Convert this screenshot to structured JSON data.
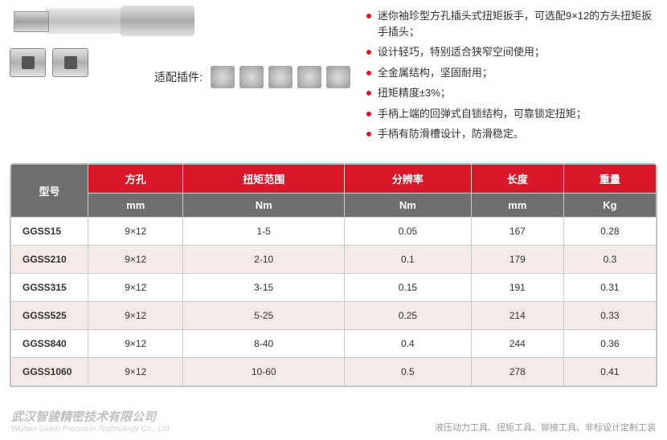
{
  "pluginLabel": "适配插件:",
  "features": [
    "迷你袖珍型方孔插头式扭矩扳手，可选配9×12的方头扭矩扳手插头；",
    "设计轻巧，特别适合狭窄空间使用；",
    "全金属结构，坚固耐用；",
    "扭矩精度±3%；",
    "手柄上端的回弹式自锁结构，可靠锁定扭矩；",
    "手柄有防滑槽设计，防滑稳定。"
  ],
  "table": {
    "modelHeader": "型号",
    "headers": [
      "方孔",
      "扭矩范围",
      "分辨率",
      "长度",
      "重量"
    ],
    "units": [
      "mm",
      "Nm",
      "Nm",
      "mm",
      "Kg"
    ],
    "rows": [
      [
        "GGSS15",
        "9×12",
        "1-5",
        "0.05",
        "167",
        "0.28"
      ],
      [
        "GGSS210",
        "9×12",
        "2-10",
        "0.1",
        "179",
        "0.3"
      ],
      [
        "GGSS315",
        "9×12",
        "3-15",
        "0.15",
        "191",
        "0.31"
      ],
      [
        "GGSS525",
        "9×12",
        "5-25",
        "0.25",
        "214",
        "0.33"
      ],
      [
        "GGSS840",
        "9×12",
        "8-40",
        "0.4",
        "244",
        "0.36"
      ],
      [
        "GGSS1060",
        "9×12",
        "10-60",
        "0.5",
        "278",
        "0.41"
      ]
    ]
  },
  "footer": {
    "companyCn": "武汉智骏精密技术有限公司",
    "companyEn": "Wuhan Gidrin Precision Technology Co., Ltd",
    "right": "液压动力工具、扭矩工具、铆接工具、非标设计定制工装"
  },
  "colors": {
    "brandRed": "#d7182a",
    "headerGray": "#6f6f6f",
    "rowAlt": "#f5eaea",
    "border": "#cccccc"
  }
}
